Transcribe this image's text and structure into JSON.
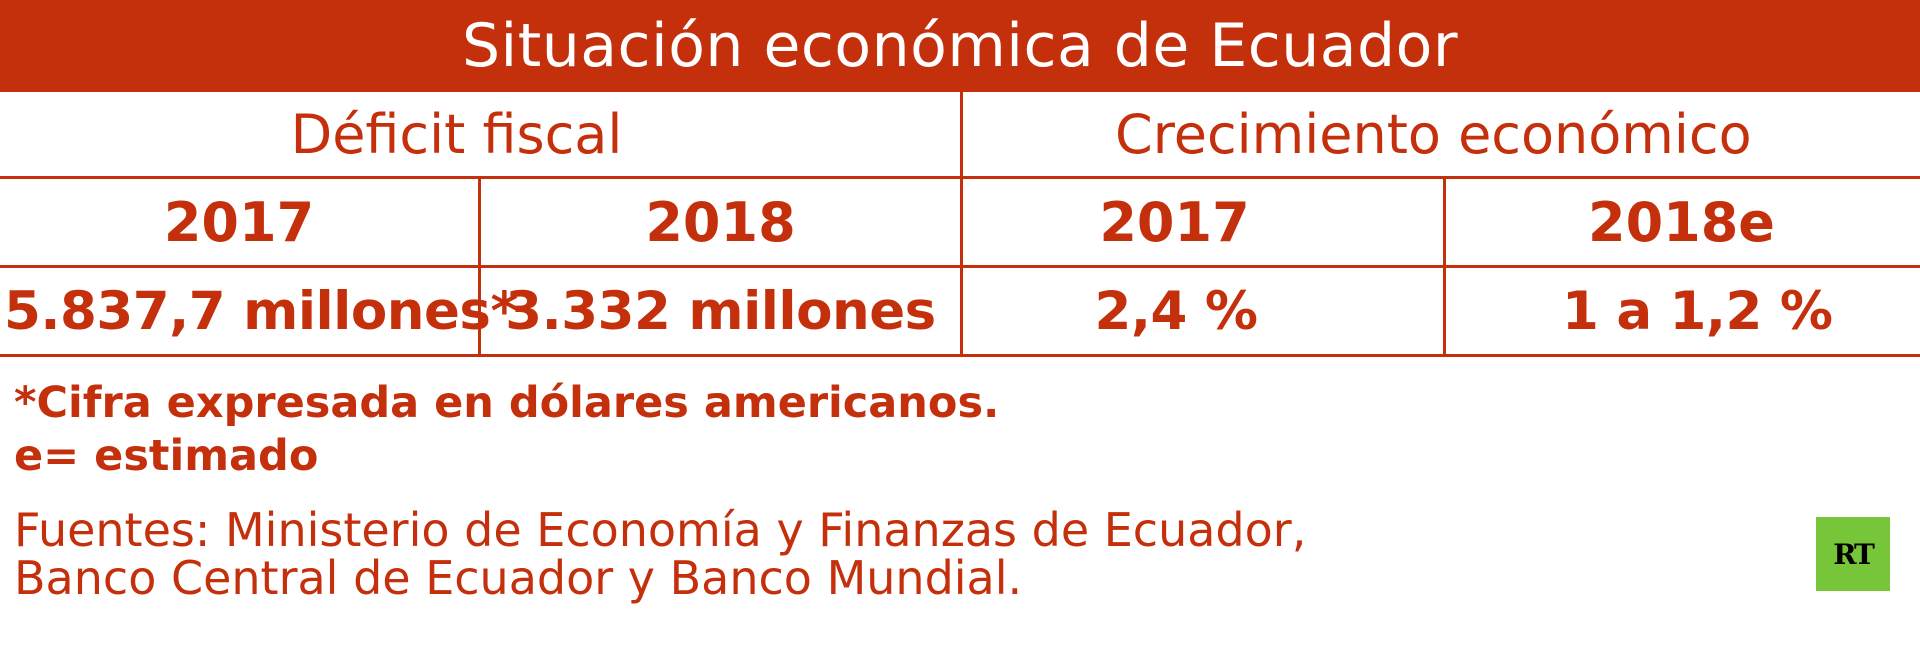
{
  "colors": {
    "accent": "#c42f0c",
    "background": "#ffffff",
    "logo_bg": "#77c63a"
  },
  "chart_data": {
    "type": "table",
    "title": "Situación económica de Ecuador",
    "groups": [
      "Déficit fiscal",
      "Crecimiento económico"
    ],
    "columns": [
      "2017",
      "2018",
      "2017",
      "2018e"
    ],
    "rows": [
      [
        "5.837,7 millones*",
        "3.332 millones",
        "2,4 %",
        "1 a 1,2 %"
      ]
    ]
  },
  "notes": {
    "line1": "*Cifra expresada en dólares americanos.",
    "line2": "e= estimado"
  },
  "sources": {
    "line1": "Fuentes: Ministerio de Economía y Finanzas de Ecuador,",
    "line2": "Banco Central de Ecuador y Banco Mundial."
  },
  "logo": {
    "text": "RT"
  }
}
